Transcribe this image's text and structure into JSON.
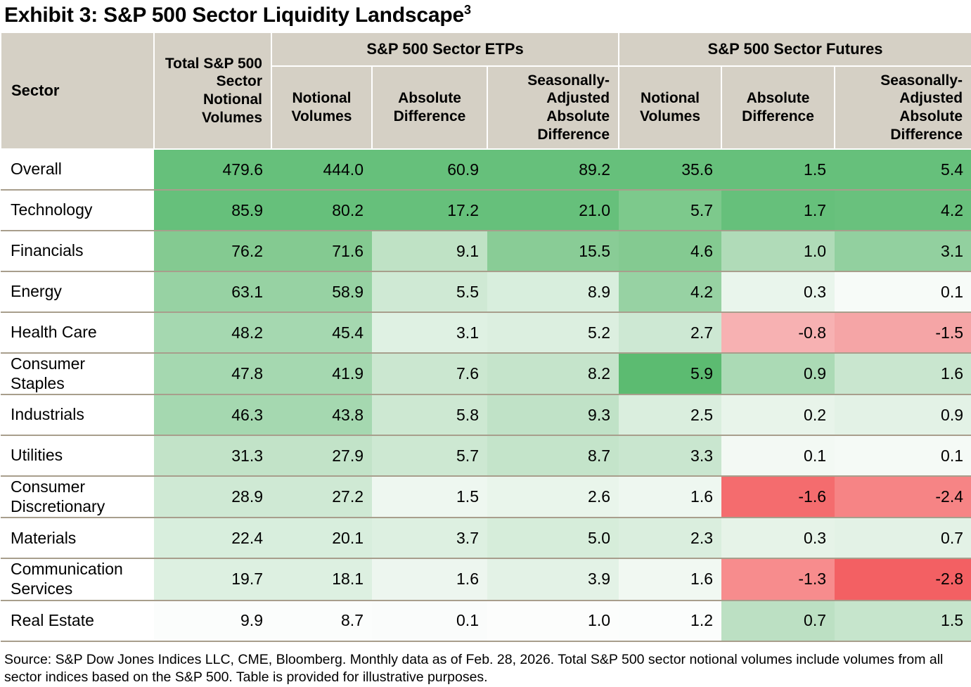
{
  "title": {
    "text": "Exhibit 3: S&P 500 Sector Liquidity Landscape",
    "footnote": "3"
  },
  "header": {
    "sector": "Sector",
    "total": "Total S&P 500 Sector Notional Volumes",
    "groups": [
      {
        "label": "S&P 500 Sector ETPs",
        "cols": [
          "Notional Volumes",
          "Absolute Difference",
          "Seasonally-Adjusted Absolute Difference"
        ]
      },
      {
        "label": "S&P 500 Sector Futures",
        "cols": [
          "Notional Volumes",
          "Absolute Difference",
          "Seasonally-Adjusted Absolute Difference"
        ]
      }
    ]
  },
  "chart_data": {
    "type": "heatmap",
    "title": "Exhibit 3: S&P 500 Sector Liquidity Landscape",
    "columns": [
      "Total S&P 500 Sector Notional Volumes",
      "ETPs Notional Volumes",
      "ETPs Absolute Difference",
      "ETPs Seasonally-Adjusted Absolute Difference",
      "Futures Notional Volumes",
      "Futures Absolute Difference",
      "Futures Seasonally-Adjusted Absolute Difference"
    ],
    "color_scale": {
      "positive": "green shades",
      "negative": "red shades"
    },
    "rows": [
      {
        "sector": "Overall",
        "label": "Overall",
        "values": [
          479.6,
          444.0,
          60.9,
          89.2,
          35.6,
          1.5,
          5.4
        ],
        "colors": [
          "#66c07b",
          "#66c07b",
          "#66c07b",
          "#66c07b",
          "#66c07b",
          "#66c07b",
          "#66c07b"
        ]
      },
      {
        "sector": "Technology",
        "label": "Technology",
        "values": [
          85.9,
          80.2,
          17.2,
          21.0,
          5.7,
          1.7,
          4.2
        ],
        "colors": [
          "#66c07b",
          "#66c07b",
          "#66c07b",
          "#66c07b",
          "#7dc98c",
          "#66c07b",
          "#69c17d"
        ]
      },
      {
        "sector": "Financials",
        "label": "Financials",
        "values": [
          76.2,
          71.6,
          9.1,
          15.5,
          4.6,
          1.0,
          3.1
        ],
        "colors": [
          "#84ca91",
          "#84ca91",
          "#bfe2c5",
          "#89cc96",
          "#84ca91",
          "#b0dbb8",
          "#92d09f"
        ]
      },
      {
        "sector": "Energy",
        "label": "Energy",
        "values": [
          63.1,
          58.9,
          5.5,
          8.9,
          4.2,
          0.3,
          0.1
        ],
        "colors": [
          "#97d2a3",
          "#97d2a3",
          "#cfe9d4",
          "#d8eedd",
          "#97d2a3",
          "#e9f5ec",
          "#f7fbf8"
        ]
      },
      {
        "sector": "Health Care",
        "label": "Health Care",
        "values": [
          48.2,
          45.4,
          3.1,
          5.2,
          2.7,
          -0.8,
          -1.5
        ],
        "colors": [
          "#a5d8b0",
          "#a5d8b0",
          "#dff1e3",
          "#dcefe0",
          "#cde8d3",
          "#f7b1b2",
          "#f5a5a6"
        ]
      },
      {
        "sector": "Consumer Staples",
        "label": "Consumer\nStaples",
        "values": [
          47.8,
          41.9,
          7.6,
          8.2,
          5.9,
          0.9,
          1.6
        ],
        "colors": [
          "#a5d8b0",
          "#a5d8b0",
          "#cbe7d0",
          "#c5e4cb",
          "#5cbb71",
          "#abdab5",
          "#c9e6cf"
        ]
      },
      {
        "sector": "Industrials",
        "label": "Industrials",
        "values": [
          46.3,
          43.8,
          5.8,
          9.3,
          2.5,
          0.2,
          0.9
        ],
        "colors": [
          "#a5d8b0",
          "#a5d8b0",
          "#cde8d2",
          "#c0e2c7",
          "#daeede",
          "#e8f4ea",
          "#e3f2e6"
        ]
      },
      {
        "sector": "Utilities",
        "label": "Utilities",
        "values": [
          31.3,
          27.9,
          5.7,
          8.7,
          3.3,
          0.1,
          0.1
        ],
        "colors": [
          "#c2e3c8",
          "#c2e3c8",
          "#cde8d2",
          "#c4e4ca",
          "#c9e6cf",
          "#f3f9f4",
          "#f5faf6"
        ]
      },
      {
        "sector": "Consumer Discretionary",
        "label": "Consumer\nDiscretionary",
        "values": [
          28.9,
          27.2,
          1.5,
          2.6,
          1.6,
          -1.6,
          -2.4
        ],
        "colors": [
          "#cfe9d4",
          "#cfe9d4",
          "#eef7f0",
          "#e9f5eb",
          "#eef7f0",
          "#f46c6e",
          "#f68485"
        ]
      },
      {
        "sector": "Materials",
        "label": "Materials",
        "values": [
          22.4,
          20.1,
          3.7,
          5.0,
          2.3,
          0.3,
          0.7
        ],
        "colors": [
          "#d8eedd",
          "#d8eedd",
          "#ddf0e1",
          "#d6edda",
          "#daeede",
          "#e6f3e8",
          "#e3f2e6"
        ]
      },
      {
        "sector": "Communication Services",
        "label": "Communication\nServices",
        "values": [
          19.7,
          18.1,
          1.6,
          3.9,
          1.6,
          -1.3,
          -2.8
        ],
        "colors": [
          "#ddf0e1",
          "#ddf0e1",
          "#edf6ef",
          "#e3f2e6",
          "#f1f8f2",
          "#f78c8d",
          "#f36063"
        ]
      },
      {
        "sector": "Real Estate",
        "label": "Real Estate",
        "values": [
          9.9,
          8.7,
          0.1,
          1.0,
          1.2,
          0.7,
          1.5
        ],
        "colors": [
          "#fbfdfc",
          "#fbfdfc",
          "#fafcfb",
          "#fcfdfc",
          "#fbfdfc",
          "#bce0c3",
          "#c6e5cc"
        ]
      }
    ]
  },
  "styles": {
    "header_bg": "#d5d0c5",
    "grid_line": "#a89e8c",
    "positive_strong": "#66c07b",
    "negative_strong": "#f36063"
  },
  "footer": {
    "source": "Source: S&P Dow Jones Indices LLC, CME, Bloomberg. Monthly data as of Feb. 28, 2026. Total S&P 500 sector notional volumes include volumes from all sector indices based on the S&P 500. Table is provided for illustrative purposes."
  }
}
